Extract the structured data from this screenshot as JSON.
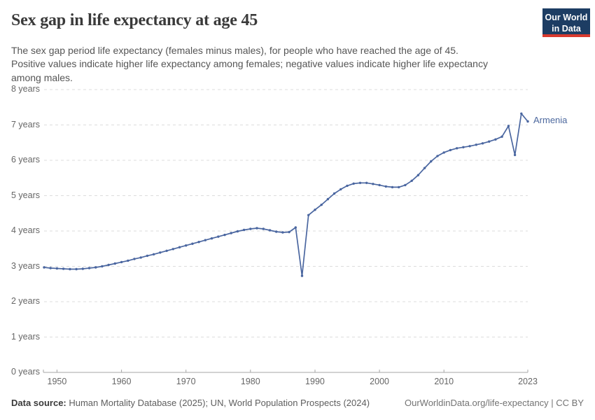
{
  "header": {
    "title": "Sex gap in life expectancy at age 45",
    "subtitle_lines": [
      "The sex gap period life expectancy (females minus males), for people who have reached the age of 45.",
      "Positive values indicate higher life expectancy among females; negative values indicate higher life expectancy",
      "among males."
    ],
    "logo": {
      "line1": "Our World",
      "line2": "in Data",
      "bg_color": "#1d3d63",
      "stripe_color": "#d93a2e"
    }
  },
  "chart_data": {
    "type": "line",
    "title": "Sex gap in life expectancy at age 45",
    "entity": "Armenia",
    "xlabel": "",
    "ylabel": "years",
    "xlim": [
      1948,
      2023
    ],
    "ylim": [
      0,
      8
    ],
    "grid": "horizontal-dashed",
    "legend_position": "end-of-line-label",
    "line_color": "#4a66a0",
    "grid_color": "#dcdcdc",
    "axis_color": "#a6a6a6",
    "x_tick_years": [
      1950,
      1960,
      1970,
      1980,
      1990,
      2000,
      2010,
      2023
    ],
    "x_tick_labels": [
      "1950",
      "1960",
      "1970",
      "1980",
      "1990",
      "2000",
      "2010",
      "2023"
    ],
    "y_tick_values": [
      0,
      1,
      2,
      3,
      4,
      5,
      6,
      7,
      8
    ],
    "y_tick_labels": [
      "0 years",
      "1 years",
      "2 years",
      "3 years",
      "4 years",
      "5 years",
      "6 years",
      "7 years",
      "8 years"
    ],
    "years": [
      1948,
      1949,
      1950,
      1951,
      1952,
      1953,
      1954,
      1955,
      1956,
      1957,
      1958,
      1959,
      1960,
      1961,
      1962,
      1963,
      1964,
      1965,
      1966,
      1967,
      1968,
      1969,
      1970,
      1971,
      1972,
      1973,
      1974,
      1975,
      1976,
      1977,
      1978,
      1979,
      1980,
      1981,
      1982,
      1983,
      1984,
      1985,
      1986,
      1987,
      1988,
      1989,
      1990,
      1991,
      1992,
      1993,
      1994,
      1995,
      1996,
      1997,
      1998,
      1999,
      2000,
      2001,
      2002,
      2003,
      2004,
      2005,
      2006,
      2007,
      2008,
      2009,
      2010,
      2011,
      2012,
      2013,
      2014,
      2015,
      2016,
      2017,
      2018,
      2019,
      2020,
      2021,
      2022,
      2023
    ],
    "values": [
      2.97,
      2.95,
      2.94,
      2.93,
      2.92,
      2.92,
      2.93,
      2.95,
      2.97,
      3.0,
      3.04,
      3.08,
      3.12,
      3.16,
      3.21,
      3.25,
      3.3,
      3.34,
      3.39,
      3.44,
      3.49,
      3.54,
      3.59,
      3.64,
      3.69,
      3.74,
      3.79,
      3.84,
      3.89,
      3.94,
      3.99,
      4.03,
      4.06,
      4.08,
      4.06,
      4.02,
      3.98,
      3.96,
      3.97,
      4.1,
      2.73,
      4.45,
      4.6,
      4.74,
      4.9,
      5.06,
      5.18,
      5.28,
      5.34,
      5.36,
      5.36,
      5.33,
      5.3,
      5.26,
      5.24,
      5.24,
      5.3,
      5.42,
      5.58,
      5.78,
      5.97,
      6.12,
      6.22,
      6.29,
      6.34,
      6.37,
      6.4,
      6.44,
      6.48,
      6.53,
      6.59,
      6.67,
      6.97,
      6.15,
      7.32,
      7.1
    ]
  },
  "footer": {
    "source_label": "Data source:",
    "source_text": " Human Mortality Database (2025); UN, World Population Prospects (2024)",
    "link": "OurWorldinData.org/life-expectancy | CC BY"
  }
}
